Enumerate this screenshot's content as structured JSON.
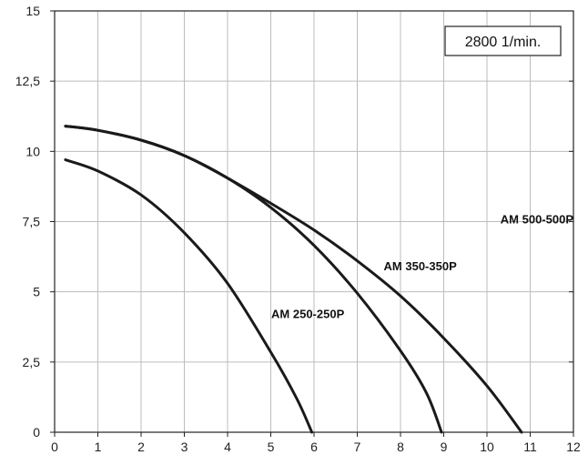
{
  "chart_data": {
    "type": "line",
    "xlim": [
      0,
      12
    ],
    "ylim": [
      0,
      15
    ],
    "x_ticks": [
      "0",
      "1",
      "2",
      "3",
      "4",
      "5",
      "6",
      "7",
      "8",
      "9",
      "10",
      "11",
      "12"
    ],
    "y_ticks": [
      "0",
      "2,5",
      "5",
      "7,5",
      "10",
      "12,5",
      "15"
    ],
    "grid": true,
    "annotation": "2800 1/min.",
    "line_color": "#1a1a1a",
    "series": [
      {
        "name": "AM 250-250P",
        "points": [
          [
            0.25,
            9.7
          ],
          [
            1,
            9.3
          ],
          [
            2,
            8.45
          ],
          [
            3,
            7.1
          ],
          [
            4,
            5.3
          ],
          [
            5,
            2.85
          ],
          [
            5.6,
            1.2
          ],
          [
            5.95,
            0.0
          ]
        ]
      },
      {
        "name": "AM 350-350P",
        "points": [
          [
            0.25,
            10.9
          ],
          [
            1,
            10.75
          ],
          [
            2,
            10.4
          ],
          [
            3,
            9.85
          ],
          [
            4,
            9.05
          ],
          [
            5,
            8.0
          ],
          [
            6,
            6.65
          ],
          [
            7,
            4.95
          ],
          [
            8,
            2.9
          ],
          [
            8.6,
            1.4
          ],
          [
            8.95,
            0.0
          ]
        ]
      },
      {
        "name": "AM 500-500P",
        "points": [
          [
            0.25,
            10.9
          ],
          [
            1,
            10.75
          ],
          [
            2,
            10.4
          ],
          [
            3,
            9.85
          ],
          [
            4,
            9.05
          ],
          [
            5,
            8.15
          ],
          [
            6,
            7.2
          ],
          [
            7,
            6.1
          ],
          [
            8,
            4.85
          ],
          [
            9,
            3.35
          ],
          [
            10,
            1.65
          ],
          [
            10.8,
            0.0
          ]
        ]
      }
    ]
  }
}
